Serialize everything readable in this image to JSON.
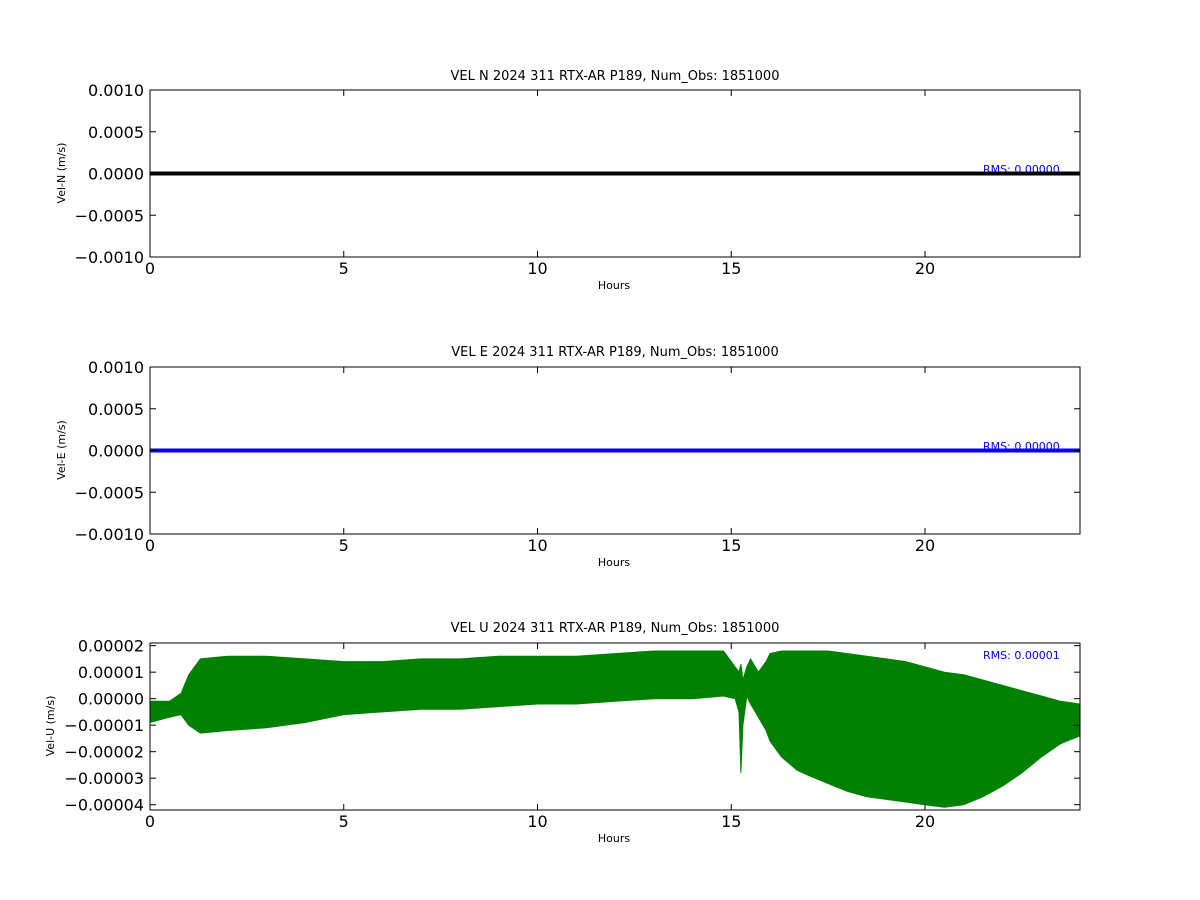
{
  "chart_data": [
    {
      "type": "line",
      "title": "VEL N 2024 311 RTX-AR  P189, Num_Obs: 1851000",
      "xlabel": "Hours",
      "ylabel": "Vel-N (m/s)",
      "xlim": [
        0,
        24
      ],
      "ylim": [
        -0.001,
        0.001
      ],
      "xticks": [
        "0",
        "5",
        "10",
        "15",
        "20"
      ],
      "xtick_values": [
        0,
        5,
        10,
        15,
        20
      ],
      "yticks": [
        "0.0010",
        "0.0005",
        "0.0000",
        "−0.0005",
        "−0.0010"
      ],
      "ytick_values": [
        0.001,
        0.0005,
        0,
        -0.0005,
        -0.001
      ],
      "series": [
        {
          "x": [
            0,
            24
          ],
          "y": [
            0,
            0
          ],
          "color": "#000000"
        }
      ],
      "annotation": "RMS:  0.00000",
      "annotation_color": "#0000ff",
      "grid": false
    },
    {
      "type": "line",
      "title": "VEL E 2024 311 RTX-AR  P189, Num_Obs: 1851000",
      "xlabel": "Hours",
      "ylabel": "Vel-E (m/s)",
      "xlim": [
        0,
        24
      ],
      "ylim": [
        -0.001,
        0.001
      ],
      "xticks": [
        "0",
        "5",
        "10",
        "15",
        "20"
      ],
      "xtick_values": [
        0,
        5,
        10,
        15,
        20
      ],
      "yticks": [
        "0.0010",
        "0.0005",
        "0.0000",
        "−0.0005",
        "−0.0010"
      ],
      "ytick_values": [
        0.001,
        0.0005,
        0,
        -0.0005,
        -0.001
      ],
      "series": [
        {
          "x": [
            0,
            24
          ],
          "y": [
            0,
            0
          ],
          "color": "#0000ff"
        }
      ],
      "annotation": "RMS:  0.00000",
      "annotation_color": "#0000ff",
      "grid": false
    },
    {
      "type": "area",
      "title": "VEL U 2024 311 RTX-AR  P189, Num_Obs: 1851000",
      "xlabel": "Hours",
      "ylabel": "Vel-U (m/s)",
      "xlim": [
        0,
        24
      ],
      "ylim": [
        -4.2e-05,
        2.1e-05
      ],
      "xticks": [
        "0",
        "5",
        "10",
        "15",
        "20"
      ],
      "xtick_values": [
        0,
        5,
        10,
        15,
        20
      ],
      "yticks": [
        "0.00002",
        "0.00001",
        "0.00000",
        "−0.00001",
        "−0.00002",
        "−0.00003",
        "−0.00004"
      ],
      "ytick_values": [
        2e-05,
        1e-05,
        0,
        -1e-05,
        -2e-05,
        -3e-05,
        -4e-05
      ],
      "series": [
        {
          "color": "#008000",
          "x": [
            0,
            0.5,
            0.8,
            1,
            1.3,
            2,
            3,
            4,
            5,
            6,
            7,
            8,
            9,
            10,
            11,
            12,
            13,
            14,
            14.8,
            15.1,
            15.2,
            15.25,
            15.3,
            15.4,
            15.5,
            15.7,
            15.9,
            16,
            16.3,
            16.7,
            17,
            17.5,
            18,
            18.5,
            19,
            19.5,
            20,
            20.5,
            21,
            21.5,
            22,
            22.5,
            23,
            23.5,
            24
          ],
          "upper": [
            -1e-06,
            -1e-06,
            2e-06,
            9e-06,
            1.5e-05,
            1.6e-05,
            1.6e-05,
            1.5e-05,
            1.4e-05,
            1.4e-05,
            1.5e-05,
            1.5e-05,
            1.6e-05,
            1.6e-05,
            1.6e-05,
            1.7e-05,
            1.8e-05,
            1.8e-05,
            1.8e-05,
            1.2e-05,
            1e-05,
            1.3e-05,
            7e-06,
            1.2e-05,
            1.5e-05,
            1e-05,
            1.4e-05,
            1.7e-05,
            1.8e-05,
            1.8e-05,
            1.8e-05,
            1.8e-05,
            1.7e-05,
            1.6e-05,
            1.5e-05,
            1.4e-05,
            1.2e-05,
            1e-05,
            9e-06,
            7e-06,
            5e-06,
            3e-06,
            1e-06,
            -1e-06,
            -2e-06
          ],
          "lower": [
            -9e-06,
            -7e-06,
            -6e-06,
            -1e-05,
            -1.3e-05,
            -1.2e-05,
            -1.1e-05,
            -9e-06,
            -6e-06,
            -5e-06,
            -4e-06,
            -4e-06,
            -3e-06,
            -2e-06,
            -2e-06,
            -1e-06,
            0.0,
            0.0,
            1e-06,
            0.0,
            -5e-06,
            -2.8e-05,
            -1e-05,
            1e-06,
            -2e-06,
            -7e-06,
            -1.2e-05,
            -1.6e-05,
            -2.2e-05,
            -2.7e-05,
            -2.9e-05,
            -3.2e-05,
            -3.5e-05,
            -3.7e-05,
            -3.8e-05,
            -3.9e-05,
            -4e-05,
            -4.1e-05,
            -4e-05,
            -3.7e-05,
            -3.3e-05,
            -2.8e-05,
            -2.2e-05,
            -1.7e-05,
            -1.4e-05
          ]
        }
      ],
      "annotation": "RMS:  0.00001",
      "annotation_color": "#0000ff",
      "grid": false
    }
  ]
}
